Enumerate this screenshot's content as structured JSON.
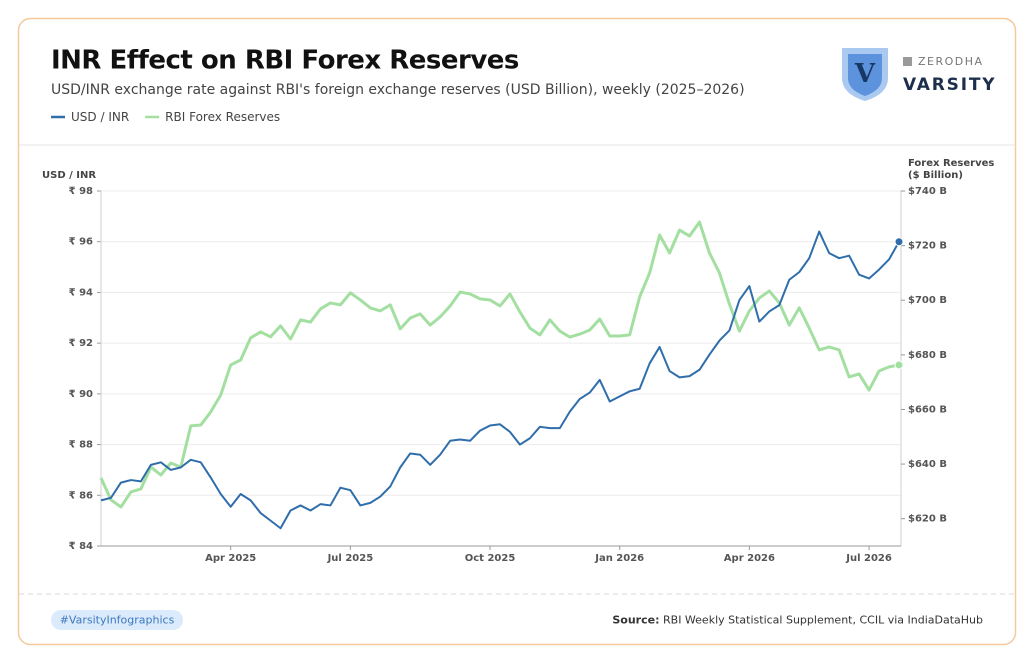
{
  "chart_data": {
    "type": "line",
    "title": "INR Effect on RBI Forex Reserves",
    "subtitle": "USD/INR exchange rate against RBI's foreign exchange reserves (USD Billion), weekly (2025–2026)",
    "y_label": "USD / INR",
    "y2_label": [
      "Forex Reserves",
      "($ Billion)"
    ],
    "categories": [
      null,
      null,
      null,
      null,
      null,
      null,
      null,
      null,
      null,
      null,
      null,
      null,
      null,
      "Apr 2025",
      null,
      null,
      null,
      null,
      null,
      null,
      null,
      null,
      null,
      null,
      null,
      "Jul 2025",
      null,
      null,
      null,
      null,
      null,
      null,
      null,
      null,
      null,
      null,
      null,
      null,
      null,
      "Oct 2025",
      null,
      null,
      null,
      null,
      null,
      null,
      null,
      null,
      null,
      null,
      null,
      null,
      "Jan 2026",
      null,
      null,
      null,
      null,
      null,
      null,
      null,
      null,
      null,
      null,
      null,
      null,
      "Apr 2026",
      null,
      null,
      null,
      null,
      null,
      null,
      null,
      null,
      null,
      null,
      null,
      "Jul 2026",
      null,
      null,
      null
    ],
    "series": [
      {
        "name": "USD / INR",
        "color": "#2f6eab",
        "axis": "y",
        "values": [
          85.8,
          85.9,
          86.5,
          86.6,
          86.55,
          87.2,
          87.3,
          87.0,
          87.1,
          87.4,
          87.3,
          86.7,
          86.05,
          85.55,
          86.05,
          85.8,
          85.3,
          85.0,
          84.7,
          85.4,
          85.6,
          85.4,
          85.65,
          85.6,
          86.3,
          86.2,
          85.6,
          85.7,
          85.95,
          86.35,
          87.1,
          87.65,
          87.6,
          87.2,
          87.6,
          88.15,
          88.2,
          88.15,
          88.55,
          88.75,
          88.8,
          88.5,
          88.0,
          88.25,
          88.7,
          88.65,
          88.65,
          89.3,
          89.8,
          90.05,
          90.55,
          89.7,
          89.9,
          90.1,
          90.2,
          91.2,
          91.85,
          90.9,
          90.65,
          90.7,
          90.95,
          91.55,
          92.1,
          92.5,
          93.7,
          94.25,
          92.85,
          93.25,
          93.5,
          94.5,
          94.8,
          95.35,
          96.4,
          95.55,
          95.35,
          95.45,
          94.7,
          94.55,
          94.9,
          95.3,
          96.0
        ]
      },
      {
        "name": "RBI Forex Reserves",
        "color": "#a4dfa2",
        "axis": "y2",
        "values": [
          634.9,
          626.9,
          624.3,
          629.8,
          630.9,
          638.9,
          636.0,
          640.4,
          638.9,
          654.0,
          654.3,
          659.1,
          665.3,
          676.3,
          678.1,
          686.2,
          688.4,
          686.6,
          690.6,
          685.8,
          692.8,
          692.0,
          696.8,
          699.0,
          698.3,
          702.7,
          700.1,
          697.2,
          696.1,
          698.3,
          689.5,
          693.5,
          695.0,
          690.9,
          693.9,
          697.9,
          703.0,
          702.3,
          700.5,
          700.1,
          697.9,
          702.3,
          695.7,
          689.8,
          687.3,
          692.8,
          688.7,
          686.5,
          687.6,
          689.1,
          693.1,
          686.9,
          686.9,
          687.3,
          701.2,
          710.0,
          723.9,
          717.3,
          725.7,
          723.5,
          728.6,
          717.3,
          710.0,
          698.6,
          688.7,
          696.1,
          700.8,
          703.4,
          699.0,
          690.9,
          697.2,
          689.8,
          681.8,
          682.9,
          681.8,
          671.9,
          673.0,
          667.1,
          674.1,
          675.6,
          676.3
        ]
      }
    ],
    "ylim": [
      84,
      98
    ],
    "yticks": [
      {
        "value": 84,
        "label": "₹ 84"
      },
      {
        "value": 86,
        "label": "₹ 86"
      },
      {
        "value": 88,
        "label": "₹ 88"
      },
      {
        "value": 90,
        "label": "₹ 90"
      },
      {
        "value": 92,
        "label": "₹ 92"
      },
      {
        "value": 94,
        "label": "₹ 94"
      },
      {
        "value": 96,
        "label": "₹ 96"
      },
      {
        "value": 98,
        "label": "₹ 98"
      }
    ],
    "y2lim": [
      610,
      740
    ],
    "y2ticks": [
      {
        "value": 620,
        "label": "$620 B"
      },
      {
        "value": 640,
        "label": "$640 B"
      },
      {
        "value": 660,
        "label": "$660 B"
      },
      {
        "value": 680,
        "label": "$680 B"
      },
      {
        "value": 700,
        "label": "$700 B"
      },
      {
        "value": 720,
        "label": "$720 B"
      },
      {
        "value": 740,
        "label": "$740 B"
      }
    ],
    "grid": true,
    "end_marker": true
  },
  "header": {
    "logo_letter": "V",
    "brand": "ZERODHA",
    "product": "VARSITY"
  },
  "footer": {
    "tag": "#VarsityInfographics",
    "source_label": "Source:",
    "source": "RBI Weekly Statistical Supplement, CCIL via IndiaDataHub"
  }
}
